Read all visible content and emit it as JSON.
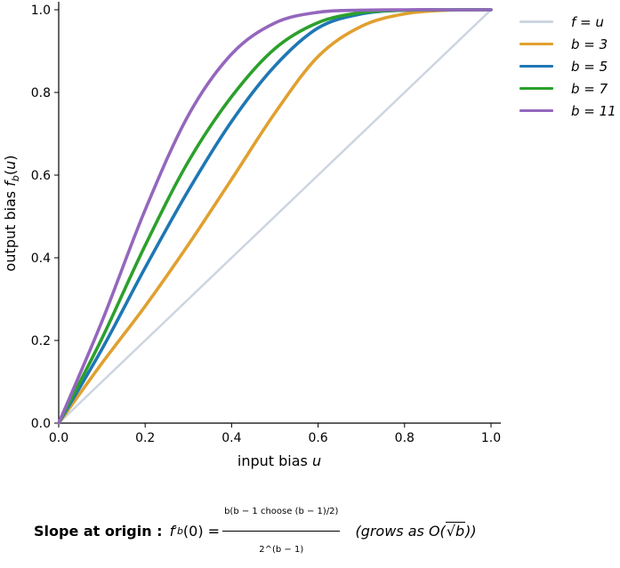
{
  "chart_data": {
    "type": "line",
    "xlabel": "input bias u",
    "ylabel": "output bias f_b(u)",
    "xlim": [
      0.0,
      1.0
    ],
    "ylim": [
      0.0,
      1.0
    ],
    "xticks": [
      "0.0",
      "0.2",
      "0.4",
      "0.6",
      "0.8",
      "1.0"
    ],
    "yticks": [
      "0.0",
      "0.2",
      "0.4",
      "0.6",
      "0.8",
      "1.0"
    ],
    "grid": false,
    "legend_position": "upper-right outside",
    "x": [
      0.0,
      0.1,
      0.2,
      0.3,
      0.4,
      0.5,
      0.6,
      0.7,
      0.8,
      0.9,
      1.0
    ],
    "series": [
      {
        "name": "f = u",
        "color": "#cdd5e0",
        "values": [
          0.0,
          0.1,
          0.2,
          0.3,
          0.4,
          0.5,
          0.6,
          0.7,
          0.8,
          0.9,
          1.0
        ]
      },
      {
        "name": "b = 3",
        "color": "#e0a030",
        "values": [
          0.0,
          0.145,
          0.283,
          0.432,
          0.59,
          0.75,
          0.887,
          0.96,
          0.99,
          0.999,
          1.0
        ]
      },
      {
        "name": "b = 5",
        "color": "#1f77b4",
        "values": [
          0.0,
          0.179,
          0.376,
          0.563,
          0.73,
          0.864,
          0.956,
          0.99,
          0.999,
          1.0,
          1.0
        ]
      },
      {
        "name": "b = 7",
        "color": "#2ca02c",
        "values": [
          0.0,
          0.205,
          0.43,
          0.633,
          0.79,
          0.906,
          0.969,
          0.993,
          0.999,
          1.0,
          1.0
        ]
      },
      {
        "name": "b = 11",
        "color": "#9467bd",
        "values": [
          0.0,
          0.246,
          0.516,
          0.745,
          0.893,
          0.968,
          0.994,
          0.999,
          1.0,
          1.0,
          1.0
        ]
      }
    ]
  },
  "formula": {
    "label": "Slope at origin :",
    "f_lhs": "f",
    "prime": "′",
    "sub_b": "b",
    "arg": "(0) =",
    "num": "b(b − 1 choose (b − 1)/2)",
    "den": "2^(b − 1)",
    "note_open": "(grows as O(",
    "note_sqrt": "b",
    "note_close": "))"
  }
}
